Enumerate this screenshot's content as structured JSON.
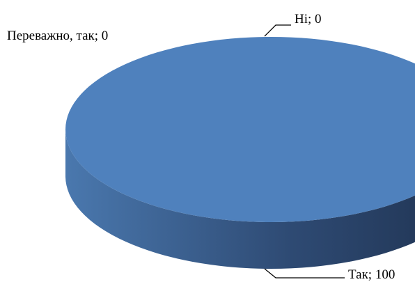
{
  "chart_data": {
    "type": "pie",
    "style": "3d",
    "categories": [
      "Так",
      "Переважно, так",
      "Ні"
    ],
    "values": [
      100,
      0,
      0
    ],
    "labels": [
      "Так; 100",
      "Переважно, так; 0",
      "Ні; 0"
    ],
    "colors": {
      "top": "#4F81BD",
      "side_light": "#4A78AE",
      "side_dark": "#1F3250",
      "leader": "#000000"
    }
  }
}
